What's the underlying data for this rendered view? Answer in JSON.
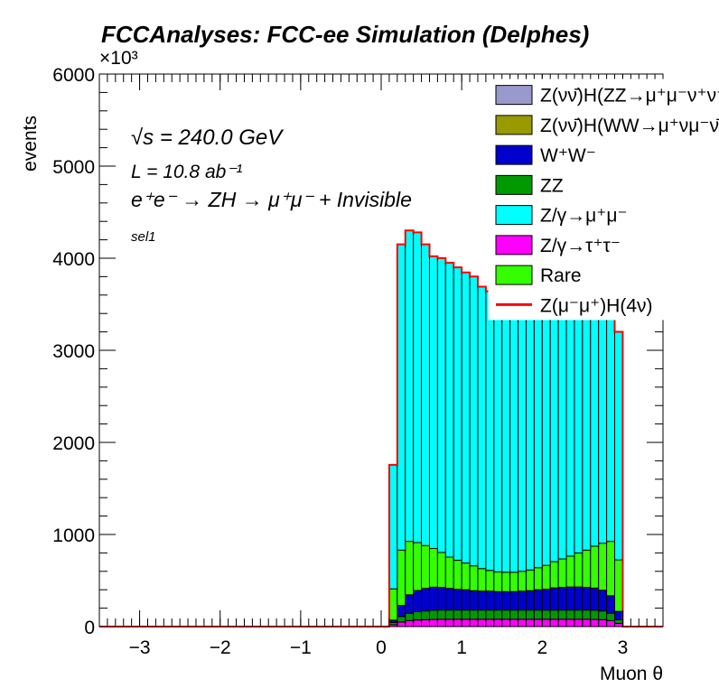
{
  "chart_data": {
    "type": "histogram-stacked",
    "title": "FCCAnalyses: FCC-ee Simulation (Delphes)",
    "xlabel": "Muon θ",
    "ylabel": "events",
    "y_exponent_label": "×10³",
    "xlim": [
      -3.5,
      3.5
    ],
    "ylim": [
      0,
      6000
    ],
    "x_ticks": [
      -3,
      -2,
      -1,
      0,
      1,
      2,
      3
    ],
    "x_tick_labels": [
      "−3",
      "−2",
      "−1",
      "0",
      "1",
      "2",
      "3"
    ],
    "y_ticks": [
      0,
      1000,
      2000,
      3000,
      4000,
      5000,
      6000
    ],
    "y_tick_labels": [
      "0",
      "1000",
      "2000",
      "3000",
      "4000",
      "5000",
      "6000"
    ],
    "annotations": {
      "sqrt_s": "√s = 240.0 GeV",
      "lumi": "L = 10.8 ab⁻¹",
      "process": "e⁺e⁻ → ZH → μ⁺μ⁻ + Invisible",
      "selection": "sel1"
    },
    "bins": {
      "x_start": 0.1,
      "width": 0.1,
      "centers": [
        0.15,
        0.25,
        0.35,
        0.45,
        0.55,
        0.65,
        0.75,
        0.85,
        0.95,
        1.05,
        1.15,
        1.25,
        1.35,
        1.45,
        1.55,
        1.65,
        1.75,
        1.85,
        1.95,
        2.05,
        2.15,
        2.25,
        2.35,
        2.45,
        2.55,
        2.65,
        2.75,
        2.85,
        2.95
      ]
    },
    "series": [
      {
        "name": "Z/γ→τ⁺τ⁻",
        "color": "#ff00ff",
        "values": [
          20,
          50,
          65,
          72,
          75,
          78,
          80,
          80,
          80,
          80,
          80,
          80,
          80,
          80,
          80,
          80,
          80,
          80,
          80,
          80,
          80,
          80,
          80,
          80,
          80,
          78,
          75,
          65,
          35
        ]
      },
      {
        "name": "ZZ",
        "color": "#009900",
        "values": [
          25,
          60,
          80,
          90,
          95,
          100,
          100,
          100,
          100,
          100,
          100,
          100,
          100,
          100,
          100,
          100,
          100,
          100,
          100,
          100,
          100,
          100,
          100,
          100,
          100,
          100,
          95,
          80,
          40
        ]
      },
      {
        "name": "W⁺W⁻",
        "color": "#0000cc",
        "values": [
          25,
          120,
          200,
          230,
          245,
          250,
          245,
          235,
          225,
          220,
          210,
          205,
          205,
          200,
          200,
          200,
          205,
          210,
          220,
          225,
          240,
          245,
          250,
          250,
          245,
          240,
          225,
          190,
          90
        ]
      },
      {
        "name": "Rare",
        "color": "#33ff00",
        "values": [
          340,
          600,
          580,
          520,
          465,
          420,
          380,
          340,
          315,
          290,
          270,
          245,
          225,
          215,
          210,
          210,
          215,
          225,
          240,
          260,
          285,
          310,
          335,
          370,
          405,
          455,
          510,
          590,
          560
        ]
      },
      {
        "name": "Z/γ→μ⁺μ⁻",
        "color": "#00ffff",
        "values": [
          1345,
          3320,
          3375,
          3368,
          3270,
          3172,
          3195,
          3195,
          3180,
          3155,
          3140,
          3060,
          3030,
          3005,
          3000,
          2980,
          3000,
          3055,
          3050,
          3085,
          3095,
          3135,
          3145,
          3230,
          3305,
          3337,
          3385,
          3365,
          2475
        ]
      },
      {
        "name": "Z(νν̄)H(WW→μ⁺νμ⁻ν̄)",
        "color": "#999900",
        "values": [
          0,
          0,
          0,
          0,
          0,
          0,
          0,
          0,
          0,
          0,
          0,
          0,
          0,
          0,
          0,
          0,
          0,
          0,
          0,
          0,
          0,
          0,
          0,
          0,
          0,
          0,
          0,
          0,
          0
        ]
      },
      {
        "name": "Z(νν̄)H(ZZ→μ⁺μ⁻ν⁺ν⁻)",
        "color": "#9999cc",
        "values": [
          0,
          0,
          0,
          0,
          0,
          0,
          0,
          0,
          0,
          0,
          0,
          0,
          0,
          0,
          0,
          0,
          0,
          0,
          0,
          0,
          0,
          0,
          0,
          0,
          0,
          0,
          0,
          0,
          0
        ]
      }
    ],
    "signal": {
      "name": "Z(μ⁻μ⁺)H(4ν)",
      "color": "#ff0000",
      "values": [
        1,
        1,
        1,
        1,
        1,
        1,
        1,
        1,
        1,
        1,
        1,
        1,
        1,
        1,
        1,
        1,
        1,
        1,
        1,
        1,
        1,
        1,
        1,
        1,
        1,
        1,
        1,
        1,
        1
      ]
    },
    "legend_order": [
      "Z(νν̄)H(ZZ→μ⁺μ⁻ν⁺ν⁻)",
      "Z(νν̄)H(WW→μ⁺νμ⁻ν̄)",
      "W⁺W⁻",
      "ZZ",
      "Z/γ→μ⁺μ⁻",
      "Z/γ→τ⁺τ⁻",
      "Rare",
      "Z(μ⁻μ⁺)H(4ν)"
    ],
    "legend_position": "top-right"
  }
}
